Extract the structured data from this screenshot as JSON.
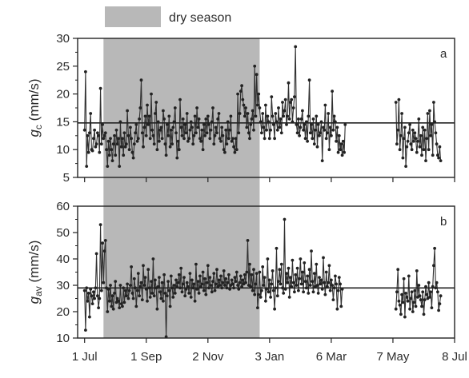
{
  "chart_data": {
    "type": "line",
    "legend": {
      "label": "dry season",
      "color": "#b8b8b8"
    },
    "shaded_region": {
      "label": "dry season",
      "x_start": "2013-07-20",
      "x_end": "2013-12-24",
      "color": "#b8b8b8"
    },
    "x": {
      "type": "date",
      "range": [
        "2013-06-24",
        "2014-07-08"
      ],
      "tick_labels": [
        "1 Jul",
        "1 Sep",
        "2 Nov",
        "3 Jan",
        "6 Mar",
        "7 May",
        "8 Jul"
      ],
      "tick_dates": [
        "2013-07-01",
        "2013-09-01",
        "2013-11-02",
        "2014-01-03",
        "2014-03-06",
        "2014-05-07",
        "2014-07-08"
      ]
    },
    "panels": [
      {
        "letter": "a",
        "ylabel_main": "g",
        "ylabel_sub": "c",
        "ylabel_unit": " (mm/s)",
        "ylim": [
          5,
          30
        ],
        "yticks": [
          5,
          10,
          15,
          20,
          25,
          30
        ],
        "mean_line": 14.8,
        "series": [
          {
            "start": "2013-07-01",
            "values": [
              13.5,
              24.0,
              7.0,
              12.5,
              9.5,
              13.0,
              16.5,
              10.0,
              9.8,
              12.0,
              13.5,
              10.5,
              11.0,
              13.0,
              12.5,
              9.5,
              21.0,
              11.0,
              14.5,
              12.0,
              12.5,
              13.0,
              10.0,
              7.0,
              11.5,
              9.0,
              12.0,
              10.0,
              8.0,
              11.0,
              12.5,
              9.0,
              13.5,
              11.0,
              12.0,
              7.0,
              15.0,
              10.5,
              12.0,
              9.0,
              13.0,
              10.5,
              11.0,
              17.0,
              12.5,
              10.0,
              14.0,
              12.0,
              9.5,
              8.5,
              11.0,
              13.0,
              14.5,
              11.5,
              12.0,
              15.5,
              17.5,
              22.5,
              13.0,
              10.5,
              14.0,
              16.0,
              12.5,
              18.0,
              14.5,
              16.0,
              12.0,
              20.0,
              13.5,
              12.5,
              11.0,
              16.5,
              18.5,
              10.0,
              15.0,
              11.5,
              13.5,
              14.0,
              12.0,
              17.0,
              15.5,
              11.0,
              9.0,
              14.5,
              12.5,
              16.0,
              10.5,
              13.5,
              11.0,
              14.0,
              15.0,
              17.5,
              13.0,
              8.5,
              11.5,
              10.0,
              19.0,
              14.0,
              12.5,
              15.5,
              12.0,
              14.5,
              13.0,
              16.5,
              11.5,
              12.0,
              13.5,
              15.0,
              14.0,
              11.0,
              12.5,
              16.0,
              13.0,
              17.5,
              14.0,
              15.5,
              12.0,
              11.5,
              13.5,
              10.0,
              14.5,
              12.5,
              15.5,
              13.0,
              16.0,
              14.5,
              12.0,
              13.5,
              15.0,
              17.5,
              11.0,
              12.5,
              14.0,
              13.0,
              15.5,
              16.5,
              12.0,
              11.5,
              14.0,
              12.5,
              10.0,
              9.5,
              13.5,
              11.0,
              15.0,
              12.0,
              13.5,
              16.0,
              11.5,
              12.0,
              10.5,
              9.5,
              12.0,
              10.0,
              20.0,
              13.0,
              16.5,
              20.5,
              21.5,
              19.0,
              18.0,
              16.0,
              17.5,
              14.0,
              16.5,
              13.0,
              12.0,
              14.5,
              15.5,
              17.0,
              13.5,
              25.0,
              16.0,
              23.5,
              18.0,
              20.0,
              17.5,
              15.0,
              13.0,
              16.5,
              14.0,
              12.0,
              18.0,
              13.5,
              16.0,
              15.0,
              12.0,
              13.5,
              19.5,
              16.0,
              14.5,
              12.0,
              16.5,
              15.0,
              13.5,
              17.5,
              14.0,
              15.5,
              13.0,
              18.5,
              16.0,
              17.0,
              19.0,
              14.5,
              16.0,
              22.0,
              15.5,
              18.5,
              19.0,
              15.0,
              17.5,
              19.5,
              28.5,
              14.5,
              13.0,
              15.5,
              12.5,
              14.0,
              15.5,
              17.0,
              13.5,
              14.5,
              12.0,
              15.0,
              11.5,
              16.0,
              22.5,
              13.0,
              14.5,
              12.0,
              15.5,
              11.0,
              13.5,
              16.0,
              10.5,
              14.5,
              12.5,
              13.0,
              15.0,
              8.0,
              14.0,
              13.5,
              18.0,
              12.0,
              13.0,
              16.5,
              10.0,
              14.0,
              12.5,
              20.5,
              13.5,
              16.0,
              15.0,
              11.5,
              14.0,
              9.5,
              12.5,
              10.0,
              11.0,
              9.0,
              11.5,
              9.5,
              14.5
            ]
          },
          {
            "start": "2014-05-10",
            "values": [
              18.5,
              11.0,
              13.5,
              19.0,
              10.0,
              12.5,
              16.5,
              8.5,
              12.0,
              14.0,
              7.0,
              10.5,
              11.5,
              13.0,
              14.5,
              11.0,
              10.0,
              13.5,
              11.5,
              13.0,
              12.0,
              9.5,
              11.5,
              15.5,
              10.5,
              12.5,
              9.0,
              14.0,
              10.0,
              13.5,
              8.0,
              12.0,
              16.5,
              10.0,
              17.0,
              12.5,
              14.5,
              9.0,
              18.5,
              15.0,
              13.0,
              11.0,
              9.0,
              8.5,
              10.5,
              8.0
            ]
          }
        ]
      },
      {
        "letter": "b",
        "ylabel_main": "g",
        "ylabel_sub": "av",
        "ylabel_unit": " (mm/s)",
        "ylim": [
          10,
          60
        ],
        "yticks": [
          10,
          20,
          30,
          40,
          50,
          60
        ],
        "mean_line": 29.0,
        "series": [
          {
            "start": "2013-07-01",
            "values": [
              28.0,
              13.0,
              29.0,
              24.0,
              27.0,
              18.0,
              28.5,
              26.0,
              23.0,
              27.5,
              25.0,
              29.0,
              42.0,
              26.0,
              21.5,
              25.0,
              53.0,
              28.0,
              46.0,
              31.0,
              43.0,
              47.0,
              29.0,
              20.0,
              28.5,
              24.0,
              30.0,
              22.0,
              26.0,
              21.0,
              27.0,
              31.5,
              23.5,
              25.0,
              24.0,
              21.5,
              30.0,
              23.0,
              22.0,
              29.0,
              23.5,
              28.0,
              26.0,
              30.5,
              25.0,
              28.0,
              30.0,
              37.0,
              27.0,
              25.0,
              32.5,
              29.0,
              22.0,
              28.0,
              34.5,
              26.0,
              29.5,
              31.0,
              24.5,
              37.5,
              30.0,
              33.0,
              28.5,
              24.0,
              36.0,
              29.0,
              25.5,
              31.5,
              27.0,
              40.0,
              26.0,
              32.0,
              29.0,
              21.0,
              29.5,
              33.0,
              27.5,
              25.0,
              31.0,
              24.0,
              34.0,
              27.0,
              10.5,
              26.0,
              31.5,
              28.0,
              22.0,
              33.5,
              29.0,
              25.5,
              30.0,
              27.0,
              32.0,
              29.5,
              31.0,
              34.0,
              29.0,
              36.5,
              27.5,
              30.5,
              33.0,
              26.0,
              28.5,
              31.0,
              29.5,
              27.0,
              34.5,
              25.5,
              32.0,
              29.0,
              30.5,
              24.0,
              38.0,
              28.5,
              31.5,
              27.0,
              33.5,
              29.5,
              30.5,
              35.0,
              28.0,
              32.5,
              26.5,
              31.0,
              37.5,
              29.0,
              33.0,
              30.0,
              27.5,
              31.5,
              34.5,
              28.0,
              30.5,
              36.0,
              29.5,
              32.0,
              30.0,
              33.5,
              29.0,
              31.0,
              35.5,
              30.0,
              32.5,
              29.0,
              31.0,
              34.0,
              28.5,
              30.0,
              32.0,
              30.5,
              29.0,
              33.0,
              31.5,
              35.0,
              30.0,
              28.5,
              31.0,
              33.5,
              29.5,
              32.0,
              30.5,
              34.0,
              31.0,
              35.0,
              47.0,
              30.0,
              38.0,
              29.5,
              34.0,
              28.0,
              36.0,
              26.5,
              30.5,
              34.5,
              21.5,
              26.5,
              35.0,
              25.5,
              28.0,
              37.0,
              30.0,
              33.0,
              24.0,
              28.5,
              40.0,
              27.5,
              32.0,
              25.5,
              30.5,
              35.5,
              28.0,
              21.0,
              29.0,
              44.0,
              26.0,
              31.5,
              36.0,
              30.5,
              38.0,
              29.0,
              27.0,
              55.0,
              28.5,
              34.5,
              31.0,
              36.5,
              25.5,
              33.0,
              29.5,
              39.5,
              31.0,
              27.5,
              34.0,
              30.0,
              36.5,
              28.0,
              32.5,
              40.0,
              30.5,
              35.0,
              27.5,
              38.5,
              31.5,
              29.0,
              33.5,
              27.0,
              36.0,
              30.0,
              43.0,
              31.5,
              27.5,
              34.5,
              29.5,
              38.0,
              30.0,
              27.0,
              33.0,
              30.5,
              32.0,
              28.5,
              40.5,
              31.0,
              26.5,
              35.0,
              29.5,
              31.0,
              37.5,
              28.0,
              32.0,
              30.0,
              24.5,
              29.0,
              33.5,
              30.5,
              21.0,
              28.0,
              33.0,
              30.5,
              22.0,
              28.5
            ]
          },
          {
            "start": "2014-05-10",
            "values": [
              21.0,
              27.5,
              36.0,
              24.0,
              22.5,
              19.0,
              26.5,
              23.5,
              32.5,
              18.0,
              27.0,
              25.5,
              24.0,
              33.5,
              21.0,
              25.0,
              27.5,
              20.0,
              23.5,
              28.0,
              22.0,
              35.5,
              25.5,
              30.0,
              26.0,
              24.5,
              22.0,
              27.5,
              19.0,
              24.5,
              29.5,
              26.5,
              25.0,
              31.0,
              25.5,
              27.5,
              21.5,
              29.5,
              37.5,
              44.0,
              29.0,
              31.0,
              27.5,
              20.5,
              23.0,
              26.0
            ]
          }
        ]
      }
    ]
  }
}
